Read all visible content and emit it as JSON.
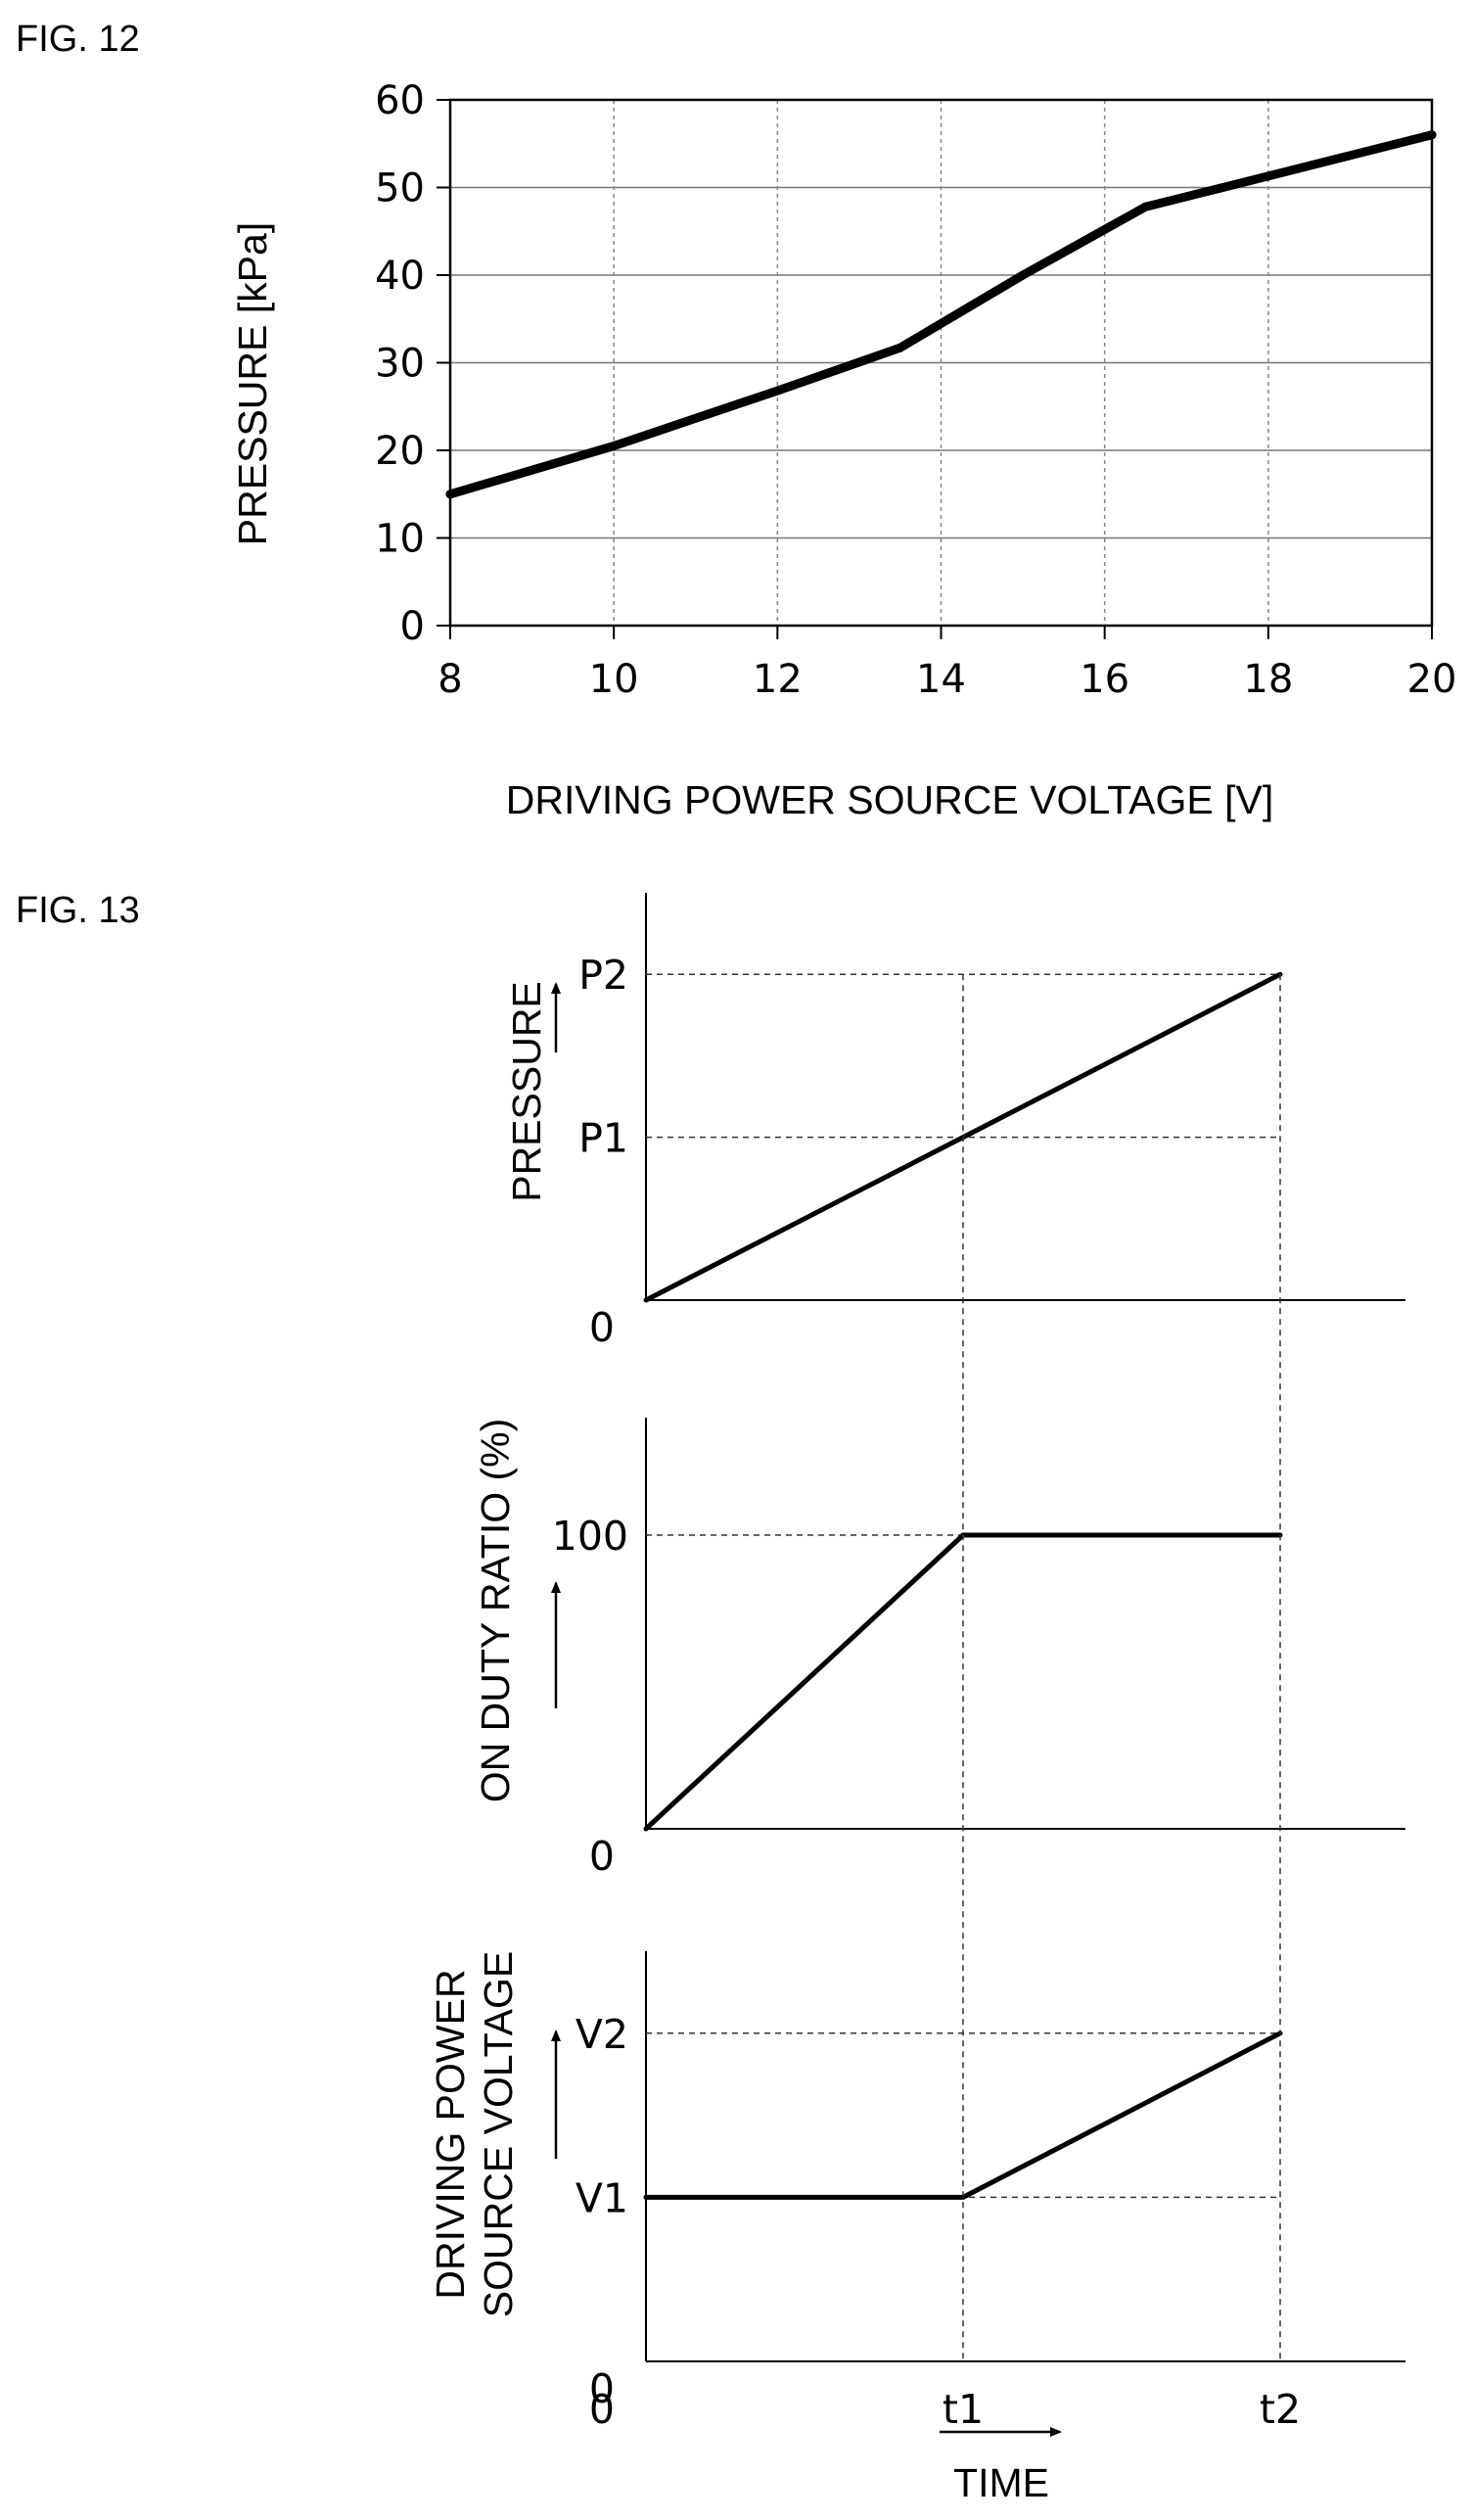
{
  "chart_data": [
    {
      "figure_label": "FIG. 12",
      "type": "line",
      "xlabel": "DRIVING POWER SOURCE VOLTAGE [V]",
      "ylabel": "PRESSURE [kPa]",
      "xlim": [
        8,
        20
      ],
      "ylim": [
        0,
        60
      ],
      "x_ticks": [
        8,
        10,
        12,
        14,
        16,
        18,
        20
      ],
      "y_ticks": [
        0,
        10,
        20,
        30,
        40,
        50,
        60
      ],
      "grid": true,
      "series": [
        {
          "x": [
            8,
            10,
            12,
            13.5,
            15,
            16.5,
            18,
            20
          ],
          "y": [
            15,
            20.5,
            26.8,
            31.7,
            40,
            47.8,
            51.3,
            56
          ]
        }
      ]
    },
    {
      "figure_label": "FIG. 13",
      "type": "line",
      "xlabel": "TIME",
      "x_ticks": [
        {
          "label": "0",
          "t": 0
        },
        {
          "label": "t1",
          "t": 1
        },
        {
          "label": "t2",
          "t": 2
        }
      ],
      "panels": [
        {
          "ylabel": "PRESSURE",
          "y_ticks": [
            {
              "label": "0",
              "value": 0
            },
            {
              "label": "P1",
              "value": 1
            },
            {
              "label": "P2",
              "value": 2
            }
          ],
          "ymax": 2.5,
          "series": [
            {
              "t": [
                0,
                2
              ],
              "y": [
                0,
                2
              ]
            }
          ]
        },
        {
          "ylabel": "ON DUTY RATIO (%)",
          "y_ticks": [
            {
              "label": "0",
              "value": 0
            },
            {
              "label": "100",
              "value": 100
            }
          ],
          "ymax": 140,
          "series": [
            {
              "t": [
                0,
                1,
                2
              ],
              "y": [
                0,
                100,
                100
              ]
            }
          ]
        },
        {
          "ylabel": [
            "DRIVING POWER",
            "SOURCE VOLTAGE"
          ],
          "y_ticks": [
            {
              "label": "0",
              "value": 0
            },
            {
              "label": "V1",
              "value": 1
            },
            {
              "label": "V2",
              "value": 2
            }
          ],
          "ymax": 2.5,
          "series": [
            {
              "t": [
                0,
                1,
                2
              ],
              "y": [
                1,
                1,
                2
              ]
            }
          ]
        }
      ]
    }
  ]
}
